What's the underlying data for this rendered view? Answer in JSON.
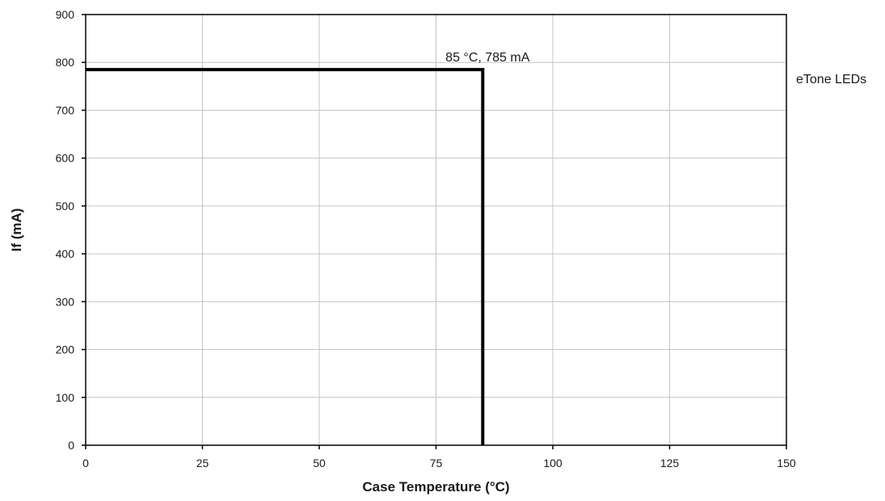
{
  "chart_data": {
    "type": "line",
    "title": "",
    "xlabel": "Case Temperature (°C)",
    "ylabel": "If (mA)",
    "xlim": [
      0,
      150
    ],
    "ylim": [
      0,
      900
    ],
    "x_ticks": [
      0,
      25,
      50,
      75,
      100,
      125,
      150
    ],
    "y_ticks": [
      0,
      100,
      200,
      300,
      400,
      500,
      600,
      700,
      800,
      900
    ],
    "x_tick_labels": [
      "0",
      "25",
      "50",
      "75",
      "100",
      "125",
      "150"
    ],
    "y_tick_labels": [
      "0",
      "100",
      "200",
      "300",
      "400",
      "500",
      "600",
      "700",
      "800",
      "900"
    ],
    "grid": true,
    "legend_placement": "right",
    "series": [
      {
        "name": "eTone LEDs",
        "color": "#000000",
        "x": [
          0,
          85,
          85
        ],
        "y": [
          785,
          785,
          0
        ]
      }
    ],
    "annotations": [
      {
        "text": "85 °C, 785 mA",
        "x": 85,
        "y": 785
      }
    ]
  }
}
